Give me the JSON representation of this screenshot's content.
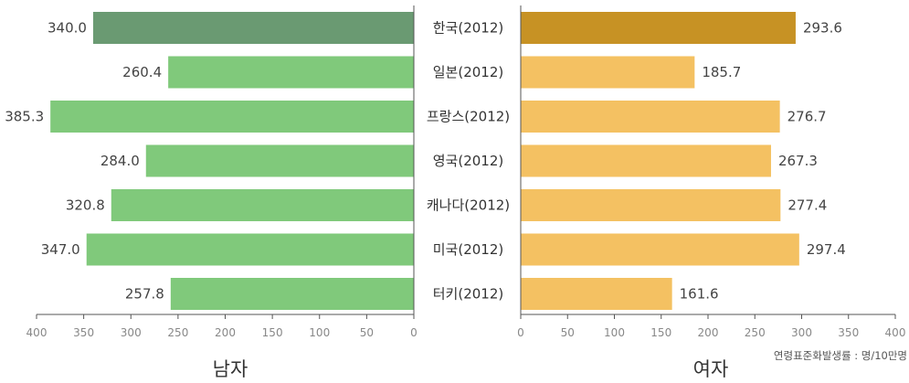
{
  "chart_data": [
    {
      "type": "bar",
      "orientation": "horizontal",
      "label": "남자",
      "categories": [
        "한국(2012)",
        "일본(2012)",
        "프랑스(2012)",
        "영국(2012)",
        "캐나다(2012)",
        "미국(2012)",
        "터키(2012)"
      ],
      "values": [
        340.0,
        260.4,
        385.3,
        284.0,
        320.8,
        347.0,
        257.8
      ],
      "value_labels": [
        "340.0",
        "260.4",
        "385.3",
        "284.0",
        "320.8",
        "347.0",
        "257.8"
      ],
      "xlim": [
        0,
        400
      ],
      "x_reversed": true,
      "ticks": [
        "400",
        "350",
        "300",
        "250",
        "200",
        "150",
        "100",
        "50",
        "0"
      ],
      "colors": {
        "highlight": "#6a9a72",
        "bar": "#80c97b"
      },
      "highlight_index": 0
    },
    {
      "type": "bar",
      "orientation": "horizontal",
      "label": "여자",
      "categories": [
        "한국(2012)",
        "일본(2012)",
        "프랑스(2012)",
        "영국(2012)",
        "캐나다(2012)",
        "미국(2012)",
        "터키(2012)"
      ],
      "values": [
        293.6,
        185.7,
        276.7,
        267.3,
        277.4,
        297.4,
        161.6
      ],
      "value_labels": [
        "293.6",
        "185.7",
        "276.7",
        "267.3",
        "277.4",
        "297.4",
        "161.6"
      ],
      "xlim": [
        0,
        400
      ],
      "ticks": [
        "0",
        "50",
        "100",
        "150",
        "200",
        "250",
        "300",
        "350",
        "400"
      ],
      "colors": {
        "highlight": "#c79224",
        "bar": "#f4c162"
      },
      "highlight_index": 0
    }
  ],
  "note": "연령표준화발생률 : 명/10만명",
  "axis_color": "#555555"
}
